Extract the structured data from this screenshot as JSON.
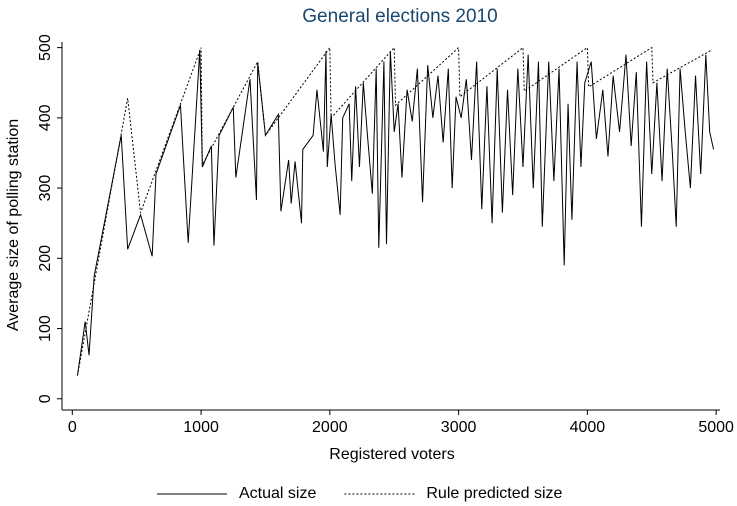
{
  "chart_data": {
    "type": "line",
    "title": "General elections 2010",
    "xlabel": "Registered voters",
    "ylabel": "Average size of polling station",
    "xlim": [
      -80,
      5030
    ],
    "ylim": [
      -16,
      508
    ],
    "xticks": [
      0,
      1000,
      2000,
      3000,
      4000,
      5000
    ],
    "yticks": [
      0,
      100,
      200,
      300,
      400,
      500
    ],
    "legend": "bottom",
    "series": [
      {
        "name": "Actual size",
        "color": "#000000",
        "dash": "solid",
        "x": [
          40,
          100,
          130,
          170,
          380,
          430,
          530,
          620,
          650,
          840,
          900,
          990,
          1010,
          1080,
          1100,
          1140,
          1250,
          1270,
          1380,
          1430,
          1440,
          1500,
          1600,
          1620,
          1680,
          1700,
          1730,
          1780,
          1790,
          1870,
          1900,
          1950,
          1970,
          1980,
          2010,
          2040,
          2080,
          2100,
          2150,
          2170,
          2200,
          2230,
          2260,
          2290,
          2330,
          2360,
          2380,
          2420,
          2440,
          2470,
          2500,
          2530,
          2560,
          2600,
          2640,
          2680,
          2720,
          2760,
          2800,
          2840,
          2880,
          2920,
          2950,
          2980,
          3020,
          3060,
          3100,
          3140,
          3180,
          3220,
          3260,
          3300,
          3340,
          3380,
          3420,
          3460,
          3500,
          3540,
          3580,
          3620,
          3650,
          3700,
          3740,
          3780,
          3820,
          3850,
          3880,
          3920,
          3950,
          3980,
          4030,
          4070,
          4120,
          4160,
          4200,
          4250,
          4300,
          4340,
          4380,
          4420,
          4460,
          4500,
          4540,
          4580,
          4620,
          4660,
          4690,
          4720,
          4760,
          4800,
          4840,
          4880,
          4920,
          4950,
          4980
        ],
        "values": [
          33,
          110,
          62,
          175,
          375,
          213,
          262,
          203,
          320,
          418,
          222,
          497,
          330,
          360,
          218,
          375,
          415,
          315,
          455,
          283,
          478,
          375,
          405,
          267,
          340,
          278,
          338,
          250,
          355,
          375,
          440,
          352,
          495,
          330,
          405,
          335,
          262,
          400,
          420,
          310,
          445,
          330,
          450,
          380,
          292,
          470,
          215,
          480,
          220,
          495,
          380,
          420,
          315,
          440,
          395,
          470,
          280,
          475,
          400,
          460,
          365,
          470,
          300,
          430,
          400,
          455,
          340,
          480,
          270,
          445,
          250,
          470,
          265,
          440,
          290,
          470,
          330,
          490,
          300,
          480,
          245,
          480,
          310,
          470,
          190,
          420,
          255,
          480,
          330,
          450,
          480,
          370,
          440,
          345,
          460,
          380,
          490,
          360,
          465,
          245,
          480,
          320,
          450,
          310,
          470,
          350,
          245,
          470,
          380,
          300,
          460,
          320,
          490,
          380,
          355
        ]
      },
      {
        "name": "Rule predicted size",
        "color": "#000000",
        "dash": "dotted",
        "x": [
          40,
          430,
          530,
          1000,
          1010,
          1440,
          1500,
          2000,
          2010,
          2500,
          2510,
          3000,
          3010,
          3500,
          3510,
          4000,
          4010,
          4500,
          4510,
          4960
        ],
        "values": [
          33,
          428,
          265,
          500,
          333,
          480,
          375,
          500,
          400,
          500,
          418,
          500,
          430,
          500,
          438,
          500,
          444,
          500,
          450,
          496
        ]
      }
    ]
  }
}
